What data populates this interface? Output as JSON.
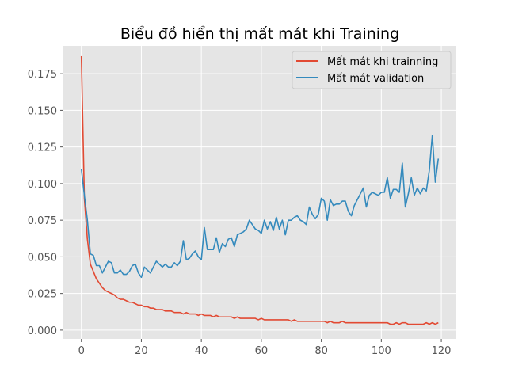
{
  "chart_data": {
    "type": "line",
    "title": "Biểu đồ hiển thị mất mát khi Training",
    "xlabel": "",
    "ylabel": "",
    "xlim": [
      -6,
      125
    ],
    "ylim": [
      -0.006,
      0.194
    ],
    "x_ticks": [
      0,
      20,
      40,
      60,
      80,
      100,
      120
    ],
    "x_tick_labels": [
      "0",
      "20",
      "40",
      "60",
      "80",
      "100",
      "120"
    ],
    "y_ticks": [
      0.0,
      0.025,
      0.05,
      0.075,
      0.1,
      0.125,
      0.15,
      0.175
    ],
    "y_tick_labels": [
      "0.000",
      "0.025",
      "0.050",
      "0.075",
      "0.100",
      "0.125",
      "0.150",
      "0.175"
    ],
    "grid": true,
    "legend_position": "top-right",
    "x": [
      0,
      1,
      2,
      3,
      4,
      5,
      6,
      7,
      8,
      9,
      10,
      11,
      12,
      13,
      14,
      15,
      16,
      17,
      18,
      19,
      20,
      21,
      22,
      23,
      24,
      25,
      26,
      27,
      28,
      29,
      30,
      31,
      32,
      33,
      34,
      35,
      36,
      37,
      38,
      39,
      40,
      41,
      42,
      43,
      44,
      45,
      46,
      47,
      48,
      49,
      50,
      51,
      52,
      53,
      54,
      55,
      56,
      57,
      58,
      59,
      60,
      61,
      62,
      63,
      64,
      65,
      66,
      67,
      68,
      69,
      70,
      71,
      72,
      73,
      74,
      75,
      76,
      77,
      78,
      79,
      80,
      81,
      82,
      83,
      84,
      85,
      86,
      87,
      88,
      89,
      90,
      91,
      92,
      93,
      94,
      95,
      96,
      97,
      98,
      99,
      100,
      101,
      102,
      103,
      104,
      105,
      106,
      107,
      108,
      109,
      110,
      111,
      112,
      113,
      114,
      115,
      116,
      117,
      118,
      119
    ],
    "series": [
      {
        "name": "Mất mát khi trainning",
        "color": "#e24a33",
        "values": [
          0.187,
          0.09,
          0.062,
          0.045,
          0.04,
          0.035,
          0.032,
          0.029,
          0.027,
          0.026,
          0.025,
          0.024,
          0.022,
          0.021,
          0.021,
          0.02,
          0.019,
          0.019,
          0.018,
          0.017,
          0.017,
          0.016,
          0.016,
          0.015,
          0.015,
          0.014,
          0.014,
          0.014,
          0.013,
          0.013,
          0.013,
          0.012,
          0.012,
          0.012,
          0.011,
          0.012,
          0.011,
          0.011,
          0.011,
          0.01,
          0.011,
          0.01,
          0.01,
          0.01,
          0.009,
          0.01,
          0.009,
          0.009,
          0.009,
          0.009,
          0.009,
          0.008,
          0.009,
          0.008,
          0.008,
          0.008,
          0.008,
          0.008,
          0.008,
          0.007,
          0.008,
          0.007,
          0.007,
          0.007,
          0.007,
          0.007,
          0.007,
          0.007,
          0.007,
          0.007,
          0.006,
          0.007,
          0.006,
          0.006,
          0.006,
          0.006,
          0.006,
          0.006,
          0.006,
          0.006,
          0.006,
          0.006,
          0.005,
          0.006,
          0.005,
          0.005,
          0.005,
          0.006,
          0.005,
          0.005,
          0.005,
          0.005,
          0.005,
          0.005,
          0.005,
          0.005,
          0.005,
          0.005,
          0.005,
          0.005,
          0.005,
          0.005,
          0.005,
          0.004,
          0.004,
          0.005,
          0.004,
          0.005,
          0.005,
          0.004,
          0.004,
          0.004,
          0.004,
          0.004,
          0.004,
          0.005,
          0.004,
          0.005,
          0.004,
          0.005
        ]
      },
      {
        "name": "Mất mát validation",
        "color": "#348abd",
        "values": [
          0.11,
          0.092,
          0.075,
          0.052,
          0.051,
          0.044,
          0.044,
          0.039,
          0.043,
          0.047,
          0.046,
          0.039,
          0.039,
          0.041,
          0.038,
          0.038,
          0.04,
          0.044,
          0.045,
          0.039,
          0.036,
          0.043,
          0.041,
          0.039,
          0.043,
          0.047,
          0.045,
          0.043,
          0.045,
          0.043,
          0.043,
          0.046,
          0.044,
          0.047,
          0.061,
          0.048,
          0.049,
          0.052,
          0.054,
          0.05,
          0.048,
          0.07,
          0.055,
          0.055,
          0.055,
          0.063,
          0.053,
          0.059,
          0.057,
          0.062,
          0.063,
          0.057,
          0.065,
          0.066,
          0.067,
          0.069,
          0.075,
          0.072,
          0.069,
          0.068,
          0.066,
          0.075,
          0.069,
          0.074,
          0.068,
          0.077,
          0.069,
          0.075,
          0.065,
          0.075,
          0.075,
          0.077,
          0.078,
          0.075,
          0.074,
          0.072,
          0.084,
          0.079,
          0.076,
          0.079,
          0.09,
          0.088,
          0.075,
          0.089,
          0.085,
          0.086,
          0.086,
          0.088,
          0.088,
          0.081,
          0.078,
          0.085,
          0.089,
          0.093,
          0.097,
          0.084,
          0.092,
          0.094,
          0.093,
          0.092,
          0.094,
          0.094,
          0.104,
          0.09,
          0.096,
          0.096,
          0.094,
          0.114,
          0.084,
          0.093,
          0.104,
          0.092,
          0.097,
          0.093,
          0.097,
          0.095,
          0.109,
          0.133,
          0.101,
          0.117
        ]
      }
    ]
  }
}
